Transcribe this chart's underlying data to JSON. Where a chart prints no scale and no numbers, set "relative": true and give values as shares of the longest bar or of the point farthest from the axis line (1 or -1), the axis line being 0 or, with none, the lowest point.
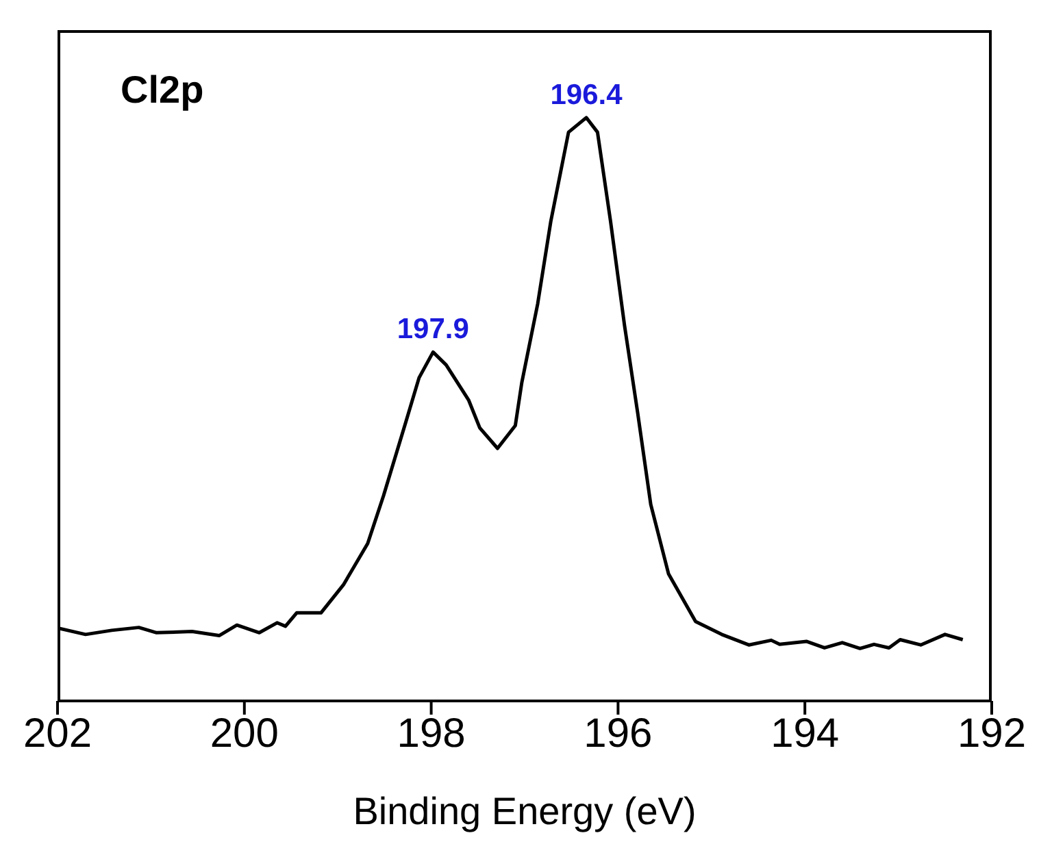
{
  "chart_data": {
    "type": "line",
    "relative": true,
    "xlabel": "Binding Energy (eV)",
    "xlim": [
      202,
      192
    ],
    "xticks": [
      202,
      200,
      198,
      196,
      194,
      192
    ],
    "annotations": [
      "Cl2p",
      {
        "text": "197.9",
        "x": 197.98,
        "y": 0.598
      },
      {
        "text": "196.4",
        "x": 196.34,
        "y": 1.0
      }
    ],
    "marker": "none",
    "series": [
      {
        "color": "#000000",
        "x": [
          202.0,
          201.7,
          201.42,
          201.13,
          200.94,
          200.56,
          200.27,
          200.08,
          199.84,
          199.65,
          199.56,
          199.44,
          199.18,
          198.94,
          198.68,
          198.51,
          198.27,
          198.13,
          197.98,
          197.84,
          197.6,
          197.48,
          197.29,
          197.1,
          197.03,
          196.86,
          196.72,
          196.53,
          196.34,
          196.22,
          196.08,
          195.93,
          195.79,
          195.65,
          195.46,
          195.17,
          194.89,
          194.6,
          194.36,
          194.27,
          193.98,
          193.79,
          193.6,
          193.41,
          193.26,
          193.1,
          192.98,
          192.76,
          192.5,
          192.31
        ],
        "values": [
          0.125,
          0.114,
          0.121,
          0.126,
          0.117,
          0.119,
          0.112,
          0.13,
          0.117,
          0.134,
          0.128,
          0.151,
          0.151,
          0.199,
          0.27,
          0.352,
          0.479,
          0.554,
          0.598,
          0.576,
          0.516,
          0.468,
          0.433,
          0.472,
          0.546,
          0.681,
          0.822,
          0.975,
          1.0,
          0.975,
          0.822,
          0.643,
          0.494,
          0.337,
          0.218,
          0.136,
          0.114,
          0.096,
          0.104,
          0.097,
          0.102,
          0.091,
          0.1,
          0.09,
          0.097,
          0.091,
          0.105,
          0.096,
          0.114,
          0.105
        ]
      }
    ]
  }
}
